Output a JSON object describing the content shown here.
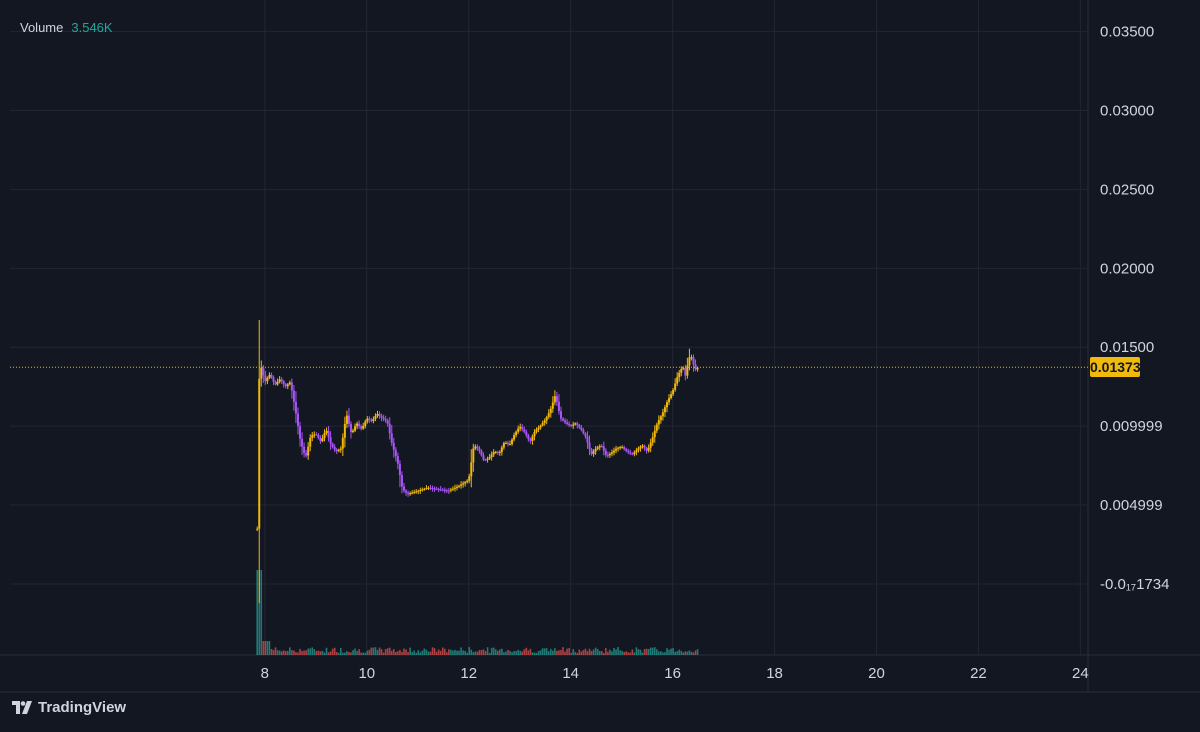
{
  "legend": {
    "label": "Volume",
    "value": "3.546K"
  },
  "brand": {
    "name": "TradingView"
  },
  "last_price": "0.01373",
  "colors": {
    "background": "#131722",
    "grid": "#232632",
    "price_line": "#f0b90b",
    "candle_up": "#f0b90b",
    "candle_down": "#a855f7",
    "volume_up": "#26a69a",
    "volume_down": "#ef5350",
    "axis_text": "#d1d4dc"
  },
  "chart_data": {
    "type": "candlestick",
    "y_axis": {
      "ticks": [
        {
          "value": 0.035,
          "label": "0.03500"
        },
        {
          "value": 0.03,
          "label": "0.03000"
        },
        {
          "value": 0.025,
          "label": "0.02500"
        },
        {
          "value": 0.02,
          "label": "0.02000"
        },
        {
          "value": 0.015,
          "label": "0.01500"
        },
        {
          "value": 0.01,
          "label": "0.009999"
        },
        {
          "value": 0.005,
          "label": "0.004999"
        },
        {
          "value": 0.0,
          "label": "-0.0₁₇1734"
        }
      ],
      "range": [
        -0.0045,
        0.037
      ]
    },
    "x_axis": {
      "ticks": [
        {
          "value": 8,
          "label": "8"
        },
        {
          "value": 10,
          "label": "10"
        },
        {
          "value": 12,
          "label": "12"
        },
        {
          "value": 14,
          "label": "14"
        },
        {
          "value": 16,
          "label": "16"
        },
        {
          "value": 18,
          "label": "18"
        },
        {
          "value": 20,
          "label": "20"
        },
        {
          "value": 22,
          "label": "22"
        },
        {
          "value": 24,
          "label": "24"
        }
      ],
      "range": [
        3.0,
        24.15
      ]
    },
    "current_price": 0.01373,
    "price_path": [
      [
        7.85,
        0.0035
      ],
      [
        7.87,
        0.011
      ],
      [
        7.9,
        0.014
      ],
      [
        7.95,
        0.0135
      ],
      [
        8.0,
        0.0128
      ],
      [
        8.1,
        0.0133
      ],
      [
        8.2,
        0.0126
      ],
      [
        8.3,
        0.013
      ],
      [
        8.4,
        0.0125
      ],
      [
        8.5,
        0.0128
      ],
      [
        8.6,
        0.011
      ],
      [
        8.7,
        0.009
      ],
      [
        8.8,
        0.008
      ],
      [
        8.9,
        0.0094
      ],
      [
        9.0,
        0.0095
      ],
      [
        9.1,
        0.009
      ],
      [
        9.2,
        0.0098
      ],
      [
        9.3,
        0.0088
      ],
      [
        9.4,
        0.0084
      ],
      [
        9.5,
        0.0086
      ],
      [
        9.6,
        0.0108
      ],
      [
        9.7,
        0.0095
      ],
      [
        9.8,
        0.0102
      ],
      [
        9.9,
        0.0098
      ],
      [
        10.0,
        0.0105
      ],
      [
        10.1,
        0.0103
      ],
      [
        10.2,
        0.0108
      ],
      [
        10.3,
        0.0105
      ],
      [
        10.4,
        0.0103
      ],
      [
        10.5,
        0.0088
      ],
      [
        10.6,
        0.0078
      ],
      [
        10.7,
        0.006
      ],
      [
        10.8,
        0.0057
      ],
      [
        11.0,
        0.0059
      ],
      [
        11.2,
        0.0061
      ],
      [
        11.4,
        0.006
      ],
      [
        11.6,
        0.0059
      ],
      [
        11.8,
        0.0062
      ],
      [
        12.0,
        0.0066
      ],
      [
        12.1,
        0.0088
      ],
      [
        12.2,
        0.0085
      ],
      [
        12.3,
        0.0078
      ],
      [
        12.4,
        0.008
      ],
      [
        12.5,
        0.0084
      ],
      [
        12.6,
        0.0083
      ],
      [
        12.7,
        0.009
      ],
      [
        12.8,
        0.0088
      ],
      [
        12.9,
        0.0095
      ],
      [
        13.0,
        0.01
      ],
      [
        13.1,
        0.0096
      ],
      [
        13.2,
        0.009
      ],
      [
        13.3,
        0.0097
      ],
      [
        13.4,
        0.01
      ],
      [
        13.5,
        0.0104
      ],
      [
        13.6,
        0.011
      ],
      [
        13.7,
        0.012
      ],
      [
        13.8,
        0.0105
      ],
      [
        13.9,
        0.0102
      ],
      [
        14.0,
        0.01
      ],
      [
        14.1,
        0.0102
      ],
      [
        14.2,
        0.0098
      ],
      [
        14.3,
        0.0093
      ],
      [
        14.4,
        0.0082
      ],
      [
        14.5,
        0.0086
      ],
      [
        14.6,
        0.0088
      ],
      [
        14.7,
        0.0081
      ],
      [
        14.8,
        0.0083
      ],
      [
        14.9,
        0.0086
      ],
      [
        15.0,
        0.0087
      ],
      [
        15.1,
        0.0084
      ],
      [
        15.2,
        0.0082
      ],
      [
        15.3,
        0.0085
      ],
      [
        15.4,
        0.0088
      ],
      [
        15.5,
        0.0084
      ],
      [
        15.6,
        0.0092
      ],
      [
        15.7,
        0.0102
      ],
      [
        15.8,
        0.0108
      ],
      [
        15.9,
        0.0116
      ],
      [
        16.0,
        0.0122
      ],
      [
        16.1,
        0.0132
      ],
      [
        16.2,
        0.0138
      ],
      [
        16.25,
        0.0132
      ],
      [
        16.3,
        0.014
      ],
      [
        16.35,
        0.0146
      ],
      [
        16.4,
        0.014
      ],
      [
        16.45,
        0.0136
      ],
      [
        16.5,
        0.01373
      ]
    ]
  }
}
